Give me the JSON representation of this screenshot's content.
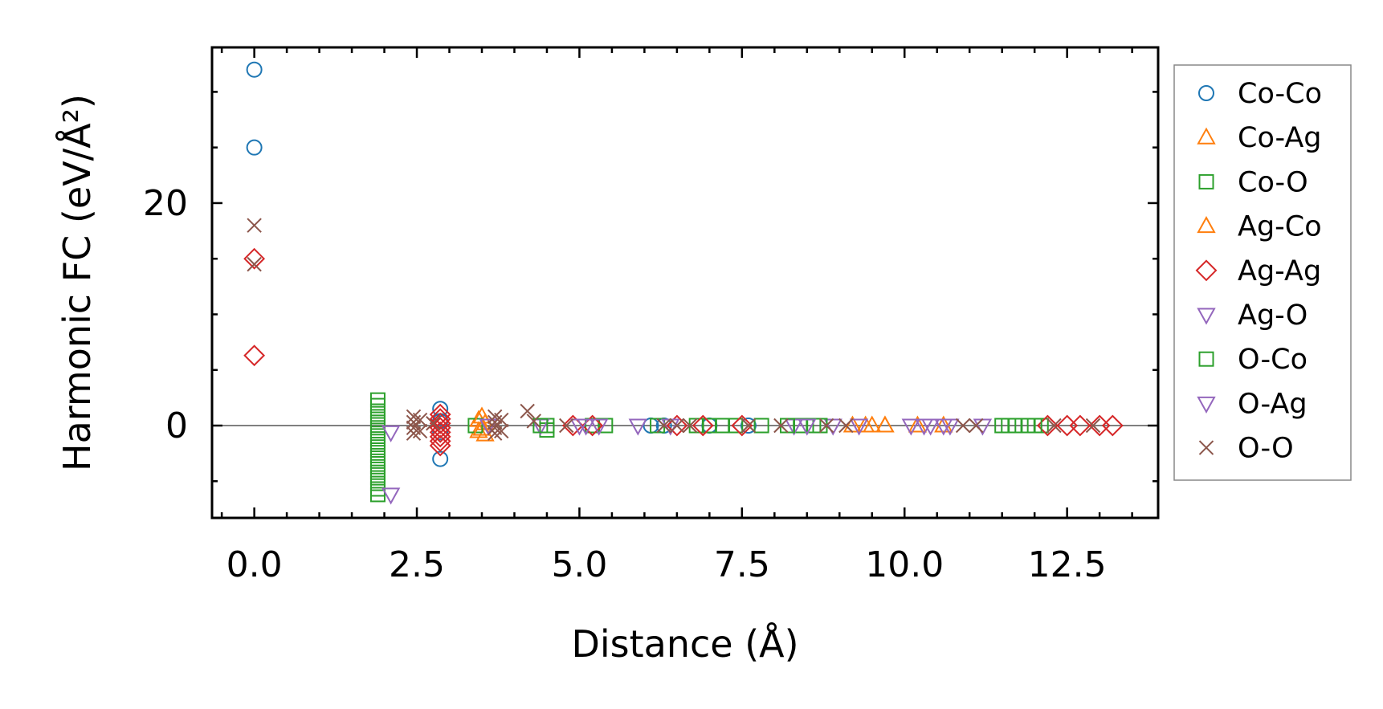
{
  "chart_data": {
    "type": "scatter",
    "xlabel": "Distance (Å)",
    "ylabel": "Harmonic FC (eV/Å²)",
    "xlim": [
      -0.65,
      13.9
    ],
    "ylim": [
      -8.3,
      34.0
    ],
    "x_ticks": [
      0.0,
      2.5,
      5.0,
      7.5,
      10.0,
      12.5
    ],
    "x_tick_labels": [
      "0.0",
      "2.5",
      "5.0",
      "7.5",
      "10.0",
      "12.5"
    ],
    "y_ticks": [
      0,
      20
    ],
    "y_tick_labels": [
      "0",
      "20"
    ],
    "zero_line": true,
    "grid": false,
    "legend_position": "outside right",
    "series": [
      {
        "name": "Co-Co",
        "color": "#1f77b4",
        "marker": "circle",
        "points": [
          [
            0.0,
            32.0
          ],
          [
            0.0,
            25.0
          ],
          [
            2.86,
            1.5
          ],
          [
            2.86,
            -3.0
          ],
          [
            2.86,
            0.4
          ],
          [
            2.86,
            -0.6
          ],
          [
            6.1,
            0.0
          ],
          [
            6.3,
            0.0
          ],
          [
            7.0,
            0.0
          ],
          [
            7.6,
            0.0
          ]
        ]
      },
      {
        "name": "Co-Ag",
        "color": "#ff7f0e",
        "marker": "triangle-up",
        "points": [
          [
            3.45,
            0.5
          ],
          [
            3.45,
            -0.5
          ],
          [
            3.55,
            0.2
          ],
          [
            3.55,
            -0.8
          ],
          [
            9.5,
            0.0
          ],
          [
            9.7,
            0.0
          ],
          [
            10.2,
            0.0
          ],
          [
            10.6,
            0.0
          ]
        ]
      },
      {
        "name": "Co-O",
        "color": "#2ca02c",
        "marker": "square",
        "points": [
          [
            1.9,
            2.3
          ],
          [
            1.9,
            1.8
          ],
          [
            1.9,
            1.3
          ],
          [
            1.9,
            0.8
          ],
          [
            1.9,
            0.3
          ],
          [
            1.9,
            -0.2
          ],
          [
            1.9,
            -0.7
          ],
          [
            1.9,
            -1.2
          ],
          [
            1.9,
            -1.7
          ],
          [
            1.9,
            -2.2
          ],
          [
            1.9,
            -2.7
          ],
          [
            1.9,
            -3.2
          ],
          [
            1.9,
            -3.7
          ],
          [
            1.9,
            -4.2
          ],
          [
            1.9,
            -4.7
          ],
          [
            1.9,
            -5.2
          ],
          [
            1.9,
            -5.7
          ],
          [
            1.9,
            -6.2
          ],
          [
            3.4,
            0.0
          ],
          [
            4.5,
            0.0
          ],
          [
            4.5,
            -0.4
          ],
          [
            5.2,
            0.0
          ],
          [
            5.4,
            0.0
          ],
          [
            6.8,
            0.0
          ],
          [
            7.0,
            0.0
          ],
          [
            7.2,
            0.0
          ],
          [
            7.4,
            0.0
          ],
          [
            7.8,
            0.0
          ],
          [
            8.4,
            0.0
          ],
          [
            8.6,
            0.0
          ],
          [
            11.5,
            0.0
          ],
          [
            11.7,
            0.0
          ],
          [
            11.9,
            0.0
          ],
          [
            12.1,
            0.0
          ]
        ]
      },
      {
        "name": "Ag-Co",
        "color": "#ff7f0e",
        "marker": "triangle-up",
        "points": [
          [
            3.5,
            0.8
          ],
          [
            3.5,
            -0.3
          ],
          [
            9.2,
            0.0
          ],
          [
            9.4,
            0.0
          ],
          [
            9.7,
            0.0
          ]
        ]
      },
      {
        "name": "Ag-Ag",
        "color": "#d62728",
        "marker": "diamond",
        "points": [
          [
            0.0,
            15.0
          ],
          [
            0.0,
            6.3
          ],
          [
            2.86,
            1.0
          ],
          [
            2.86,
            0.6
          ],
          [
            2.86,
            0.2
          ],
          [
            2.86,
            -0.2
          ],
          [
            2.86,
            -0.6
          ],
          [
            2.86,
            -1.0
          ],
          [
            2.86,
            -1.4
          ],
          [
            2.86,
            -1.8
          ],
          [
            4.9,
            0.0
          ],
          [
            5.2,
            0.0
          ],
          [
            6.5,
            0.0
          ],
          [
            6.9,
            0.0
          ],
          [
            7.5,
            0.0
          ],
          [
            12.2,
            0.0
          ],
          [
            12.5,
            0.0
          ],
          [
            12.7,
            0.0
          ],
          [
            13.0,
            0.0
          ],
          [
            13.2,
            0.0
          ]
        ]
      },
      {
        "name": "Ag-O",
        "color": "#9467bd",
        "marker": "triangle-down",
        "points": [
          [
            2.1,
            -0.6
          ],
          [
            2.1,
            -6.2
          ],
          [
            3.6,
            0.0
          ],
          [
            4.4,
            0.0
          ],
          [
            5.1,
            0.0
          ],
          [
            5.3,
            0.0
          ],
          [
            5.9,
            0.0
          ],
          [
            8.3,
            0.0
          ],
          [
            8.9,
            0.0
          ],
          [
            10.1,
            0.0
          ],
          [
            10.4,
            0.0
          ],
          [
            11.2,
            0.0
          ]
        ]
      },
      {
        "name": "O-Co",
        "color": "#2ca02c",
        "marker": "square",
        "points": [
          [
            4.4,
            0.0
          ],
          [
            6.2,
            0.0
          ],
          [
            8.2,
            0.0
          ],
          [
            8.7,
            0.0
          ],
          [
            11.6,
            0.0
          ],
          [
            12.0,
            0.0
          ]
        ]
      },
      {
        "name": "O-Ag",
        "color": "#9467bd",
        "marker": "triangle-down",
        "points": [
          [
            5.0,
            0.0
          ],
          [
            6.4,
            0.0
          ],
          [
            8.5,
            0.0
          ],
          [
            9.3,
            0.0
          ],
          [
            10.3,
            0.0
          ],
          [
            10.6,
            0.0
          ],
          [
            10.7,
            0.0
          ]
        ]
      },
      {
        "name": "O-O",
        "color": "#8c564b",
        "marker": "x",
        "points": [
          [
            0.0,
            18.0
          ],
          [
            0.0,
            14.5
          ],
          [
            2.45,
            0.8
          ],
          [
            2.45,
            0.3
          ],
          [
            2.45,
            -0.2
          ],
          [
            2.45,
            -0.7
          ],
          [
            2.55,
            0.5
          ],
          [
            2.55,
            -0.5
          ],
          [
            2.75,
            0.2
          ],
          [
            3.7,
            0.8
          ],
          [
            3.7,
            0.3
          ],
          [
            3.7,
            -0.2
          ],
          [
            3.7,
            -0.7
          ],
          [
            3.8,
            0.5
          ],
          [
            3.8,
            -0.5
          ],
          [
            4.2,
            1.3
          ],
          [
            4.3,
            0.4
          ],
          [
            4.8,
            0.0
          ],
          [
            6.3,
            0.0
          ],
          [
            6.5,
            0.0
          ],
          [
            6.7,
            0.0
          ],
          [
            7.6,
            0.0
          ],
          [
            8.1,
            0.0
          ],
          [
            8.8,
            0.0
          ],
          [
            9.1,
            0.0
          ],
          [
            10.9,
            0.0
          ],
          [
            11.1,
            0.0
          ],
          [
            12.3,
            0.0
          ],
          [
            12.9,
            0.0
          ]
        ]
      }
    ]
  }
}
